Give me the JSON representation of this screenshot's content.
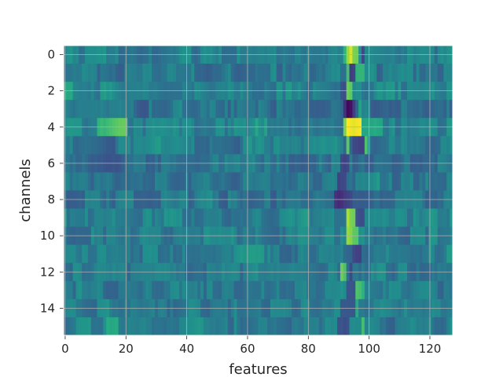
{
  "chart_data": {
    "type": "heatmap",
    "xlabel": "features",
    "ylabel": "channels",
    "xlim": [
      0,
      127
    ],
    "ylim": [
      15,
      0
    ],
    "xticks": [
      0,
      20,
      40,
      60,
      80,
      100,
      120
    ],
    "yticks": [
      0,
      2,
      4,
      6,
      8,
      10,
      12,
      14
    ],
    "grid": true,
    "colormap": "viridis",
    "n_channels": 16,
    "n_features": 128,
    "rows": [
      {
        "channel": 0,
        "base": 0.42,
        "hot": [
          [
            93,
            0.85
          ],
          [
            94,
            0.95
          ],
          [
            95,
            0.8
          ],
          [
            92,
            0.65
          ]
        ],
        "cold": [
          [
            98,
            0.22
          ]
        ]
      },
      {
        "channel": 1,
        "base": 0.4,
        "hot": [
          [
            93,
            0.7
          ],
          [
            96,
            0.65
          ]
        ],
        "cold": [
          [
            94,
            0.18
          ],
          [
            95,
            0.2
          ]
        ]
      },
      {
        "channel": 2,
        "base": 0.45,
        "hot": [
          [
            0,
            0.62
          ],
          [
            1,
            0.6
          ],
          [
            93,
            0.78
          ],
          [
            94,
            0.75
          ]
        ],
        "cold": [
          [
            91,
            0.25
          ]
        ]
      },
      {
        "channel": 3,
        "base": 0.38,
        "hot": [
          [
            97,
            0.58
          ]
        ],
        "cold": [
          [
            93,
            0.02
          ],
          [
            94,
            0.05
          ],
          [
            92,
            0.15
          ],
          [
            95,
            0.18
          ]
        ]
      },
      {
        "channel": 4,
        "base": 0.45,
        "hot": [
          [
            93,
            1.0
          ],
          [
            94,
            0.98
          ],
          [
            92,
            0.8
          ],
          [
            11,
            0.65
          ],
          [
            12,
            0.68
          ],
          [
            63,
            0.6
          ],
          [
            66,
            0.58
          ],
          [
            98,
            0.6
          ]
        ],
        "cold": []
      },
      {
        "channel": 5,
        "base": 0.42,
        "hot": [
          [
            93,
            0.75
          ],
          [
            99,
            0.72
          ]
        ],
        "cold": [
          [
            95,
            0.22
          ]
        ]
      },
      {
        "channel": 6,
        "base": 0.38,
        "hot": [],
        "cold": [
          [
            91,
            0.22
          ],
          [
            92,
            0.2
          ],
          [
            93,
            0.22
          ]
        ]
      },
      {
        "channel": 7,
        "base": 0.4,
        "hot": [
          [
            103,
            0.55
          ]
        ],
        "cold": [
          [
            90,
            0.2
          ],
          [
            91,
            0.22
          ]
        ]
      },
      {
        "channel": 8,
        "base": 0.38,
        "hot": [],
        "cold": [
          [
            89,
            0.15
          ],
          [
            90,
            0.12
          ],
          [
            91,
            0.14
          ],
          [
            92,
            0.18
          ],
          [
            93,
            0.2
          ],
          [
            94,
            0.22
          ]
        ]
      },
      {
        "channel": 9,
        "base": 0.45,
        "hot": [
          [
            93,
            0.88
          ],
          [
            94,
            0.8
          ],
          [
            0,
            0.55
          ]
        ],
        "cold": [
          [
            96,
            0.25
          ]
        ]
      },
      {
        "channel": 10,
        "base": 0.43,
        "hot": [
          [
            93,
            0.85
          ],
          [
            94,
            0.82
          ],
          [
            95,
            0.75
          ]
        ],
        "cold": []
      },
      {
        "channel": 11,
        "base": 0.42,
        "hot": [
          [
            126,
            0.55
          ],
          [
            127,
            0.55
          ]
        ],
        "cold": [
          [
            95,
            0.22
          ],
          [
            96,
            0.2
          ]
        ]
      },
      {
        "channel": 12,
        "base": 0.42,
        "hot": [
          [
            91,
            0.78
          ],
          [
            92,
            0.72
          ]
        ],
        "cold": [
          [
            94,
            0.22
          ]
        ]
      },
      {
        "channel": 13,
        "base": 0.42,
        "hot": [
          [
            96,
            0.72
          ],
          [
            97,
            0.7
          ],
          [
            98,
            0.65
          ]
        ],
        "cold": [
          [
            93,
            0.25
          ]
        ]
      },
      {
        "channel": 14,
        "base": 0.42,
        "hot": [
          [
            96,
            0.62
          ]
        ],
        "cold": [
          [
            91,
            0.28
          ]
        ]
      },
      {
        "channel": 15,
        "base": 0.42,
        "hot": [
          [
            14,
            0.62
          ],
          [
            15,
            0.6
          ],
          [
            98,
            0.7
          ]
        ],
        "cold": [
          [
            90,
            0.25
          ]
        ]
      }
    ]
  }
}
